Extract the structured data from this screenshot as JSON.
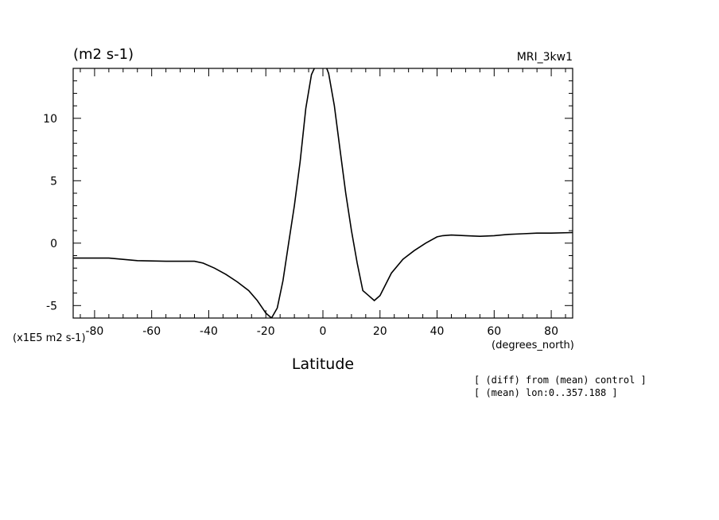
{
  "chart_data": {
    "type": "line",
    "title": "(m2 s-1)",
    "model_label": "MRI_3kw1",
    "xlabel": "Latitude",
    "x_unit_label": "(degrees_north)",
    "y_scale_label": "(x1E5 m2 s-1)",
    "notes": [
      "[ (diff) from (mean) control ]",
      "[ (mean) lon:0..357.188 ]"
    ],
    "xlim": [
      -87.5,
      87.5
    ],
    "ylim": [
      -6,
      14
    ],
    "x_ticks": [
      -80,
      -60,
      -40,
      -20,
      0,
      20,
      40,
      60,
      80
    ],
    "x_tick_labels": [
      "-80",
      "-60",
      "-40",
      "-20",
      "0",
      "20",
      "40",
      "60",
      "80"
    ],
    "y_ticks": [
      -5,
      0,
      5,
      10
    ],
    "y_tick_labels": [
      "-5",
      "0",
      "5",
      "10"
    ],
    "grid": false,
    "series": [
      {
        "x": [
          -87.5,
          -75,
          -65,
          -55,
          -45,
          -42,
          -38,
          -34,
          -30,
          -26,
          -23,
          -20,
          -18,
          -16,
          -14,
          -12,
          -10,
          -8,
          -6,
          -4,
          -2,
          0,
          1,
          2,
          4,
          6,
          8,
          10,
          12,
          14,
          16,
          18,
          20,
          24,
          28,
          32,
          36,
          40,
          42,
          45,
          50,
          55,
          60,
          65,
          70,
          75,
          80,
          87.5
        ],
        "y": [
          -1.2,
          -1.2,
          -1.4,
          -1.45,
          -1.45,
          -1.6,
          -2.0,
          -2.5,
          -3.1,
          -3.8,
          -4.6,
          -5.6,
          -6.0,
          -5.2,
          -3.0,
          0.0,
          3.0,
          6.5,
          10.8,
          13.5,
          14.5,
          14.5,
          14.2,
          13.6,
          11.0,
          7.5,
          4.0,
          1.0,
          -1.6,
          -3.8,
          -4.2,
          -4.6,
          -4.2,
          -2.4,
          -1.3,
          -0.6,
          0.0,
          0.5,
          0.6,
          0.65,
          0.6,
          0.55,
          0.6,
          0.7,
          0.75,
          0.8,
          0.8,
          0.85
        ]
      }
    ]
  }
}
